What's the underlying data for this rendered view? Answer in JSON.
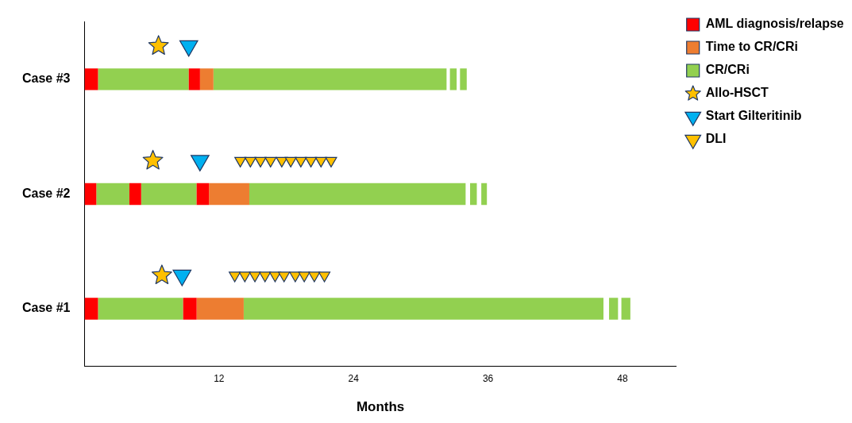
{
  "chart_data": {
    "type": "bar",
    "orientation": "horizontal",
    "xlabel": "Months",
    "categories": [
      "Case #3",
      "Case #2",
      "Case #1"
    ],
    "xlim": [
      0,
      52.8
    ],
    "xticks": [
      12,
      24,
      36,
      48
    ],
    "grid": false,
    "legend": "top right",
    "series": [
      {
        "name": "AML diagnosis/relapse",
        "color": "#ff0000",
        "base": [
          0,
          0,
          0
        ],
        "values": [
          1.2,
          1.05,
          1.2
        ]
      },
      {
        "color": "#ff0000",
        "base": [
          9.3,
          4.0,
          8.8
        ],
        "values": [
          1.0,
          1.05,
          1.2
        ]
      },
      {
        "color": "#ff0000",
        "base": [
          null,
          10.0,
          null
        ],
        "values": [
          null,
          1.1,
          null
        ]
      },
      {
        "name": "Time to CR/CRi",
        "color": "#ed7d31",
        "base": [
          10.3,
          11.1,
          10.0
        ],
        "values": [
          1.2,
          3.6,
          4.2
        ]
      },
      {
        "name": "CR/CRi",
        "color": "#92d050",
        "base": [
          1.2,
          1.05,
          1.2
        ],
        "values": [
          8.1,
          2.95,
          7.6
        ]
      },
      {
        "color": "#92d050",
        "base": [
          null,
          5.05,
          null
        ],
        "values": [
          null,
          4.95,
          null
        ]
      },
      {
        "color": "#92d050",
        "base": [
          11.5,
          14.7,
          14.2
        ],
        "values": [
          20.8,
          19.3,
          32.1
        ]
      },
      {
        "color": "#92d050",
        "base": [
          32.6,
          34.4,
          46.8
        ],
        "values": [
          0.6,
          0.6,
          0.8
        ]
      },
      {
        "color": "#92d050",
        "base": [
          33.5,
          35.4,
          47.9
        ],
        "values": [
          0.6,
          0.5,
          0.8
        ]
      },
      {
        "type": "scatter",
        "name": "Allo-HSCT",
        "color": "#ffc000",
        "marker": "star",
        "x": [
          "Case #3",
          "Case #2",
          "Case #1"
        ],
        "values": [
          6.6,
          6.1,
          6.9
        ]
      },
      {
        "type": "scatter",
        "name": "Start Gilteritinib",
        "color": "#00b0f0",
        "marker": "triangle",
        "x": [
          "Case #3",
          "Case #2",
          "Case #1"
        ],
        "values": [
          9.3,
          10.3,
          8.7
        ]
      },
      {
        "type": "scatter",
        "name": "DLI",
        "color": "#ffc000",
        "marker": "triangle",
        "x": [
          "Case #2",
          "Case #2",
          "Case #2",
          "Case #2",
          "Case #2",
          "Case #2",
          "Case #2",
          "Case #2",
          "Case #2",
          "Case #2",
          "Case #1",
          "Case #1",
          "Case #1",
          "Case #1",
          "Case #1",
          "Case #1",
          "Case #1",
          "Case #1",
          "Case #1",
          "Case #1"
        ],
        "values": [
          13.9,
          14.8,
          15.7,
          16.6,
          17.6,
          18.4,
          19.3,
          20.2,
          21.1,
          22.0,
          13.4,
          14.3,
          15.2,
          16.1,
          17.0,
          17.8,
          18.8,
          19.6,
          20.5,
          21.4
        ]
      }
    ]
  }
}
